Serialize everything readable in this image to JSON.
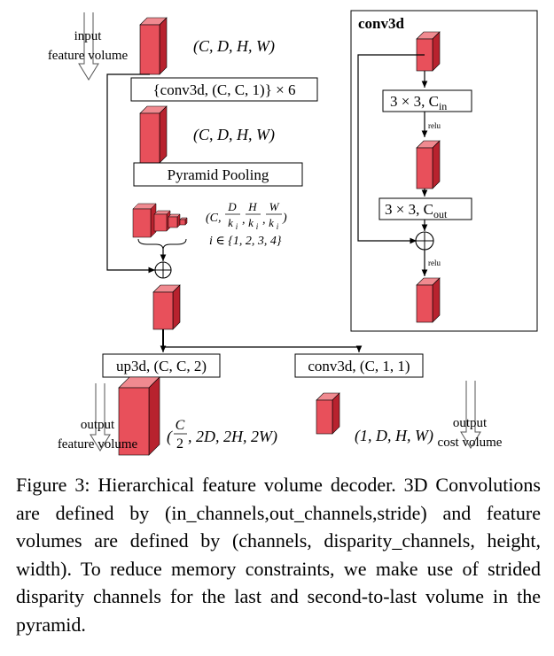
{
  "diagram": {
    "input_label_line1": "input",
    "input_label_line2": "feature volume",
    "dims_top": "(C, D, H, W)",
    "conv_block": "{conv3d, (C, C, 1)} × 6",
    "dims_mid": "(C, D, H, W)",
    "pyramid_pooling": "Pyramid Pooling",
    "pyramid_dims_prefix": "(C,",
    "pyramid_frac1_num": "D",
    "pyramid_frac2_num": "H",
    "pyramid_frac3_num": "W",
    "pyramid_frac_den": "k",
    "pyramid_frac_den_sub": "i",
    "pyramid_dims_suffix": ")",
    "pyramid_index": "i ∈ {1, 2, 3, 4}",
    "up3d_box": "up3d, (C, C, 2)",
    "conv3d_out_box": "conv3d, (C, 1, 1)",
    "output_feature_line1": "output",
    "output_feature_line2": "feature volume",
    "output_dims_frac_num": "C",
    "output_dims_frac_den": "2",
    "output_dims_rest": ", 2D, 2H, 2W)",
    "output_dims_open": "(",
    "cost_dims": "(1, D, H, W)",
    "output_cost_line1": "output",
    "output_cost_line2": "cost volume"
  },
  "inset": {
    "title": "conv3d",
    "box1_main": "3 × 3, C",
    "box1_sub": "in",
    "relu1": "relu",
    "box2_main": "3 × 3, C",
    "box2_sub": "out",
    "relu2": "relu"
  },
  "caption": {
    "text": "Figure 3: Hierarchical feature volume decoder. 3D Convolutions are defined by (in_channels,out_channels,stride) and feature volumes are defined by (channels, disparity_channels, height, width). To reduce memory constraints, we make use of strided disparity channels for the last and second-to-last volume in the pyramid."
  },
  "colors": {
    "block_front": "#e8505b",
    "block_side": "#b8222e",
    "block_top": "#f08a90"
  }
}
